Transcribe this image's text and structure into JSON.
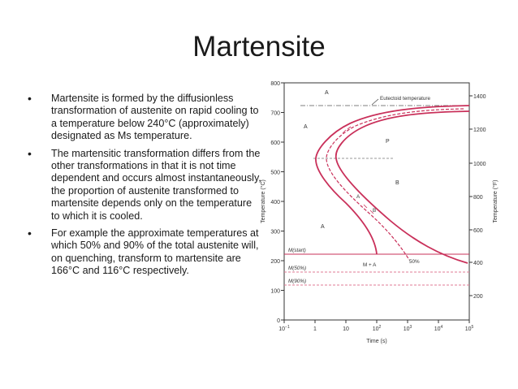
{
  "slide": {
    "title": "Martensite",
    "bullets": [
      "Martensite is formed by the diffusionless transformation of austenite on rapid cooling to a temperature below 240°C (approximately) designated as Ms temperature.",
      "The martensitic transformation differs from the other transformations in that it is not time dependent and occurs almost instantaneously, the proportion of austenite transformed to martensite depends only on the temperature to which it is cooled.",
      "For example the approximate temperatures at which 50% and 90% of the total austenite will, on quenching, transform to martensite are 166°C and 116°C respectively."
    ]
  },
  "diagram": {
    "xlabel": "Time (s)",
    "ylabel_left": "Temperature (°C)",
    "ylabel_right": "Temperature (°F)",
    "x_ticks": [
      {
        "base": "10",
        "exp": "−1"
      },
      {
        "base": "1",
        "exp": ""
      },
      {
        "base": "10",
        "exp": ""
      },
      {
        "base": "10",
        "exp": "2"
      },
      {
        "base": "10",
        "exp": "3"
      },
      {
        "base": "10",
        "exp": "4"
      },
      {
        "base": "10",
        "exp": "5"
      }
    ],
    "y_ticks_c": [
      "0",
      "100",
      "200",
      "300",
      "400",
      "500",
      "600",
      "700",
      "800"
    ],
    "y_ticks_f": [
      "200",
      "400",
      "600",
      "800",
      "1000",
      "1200",
      "1400"
    ],
    "labels": {
      "eutectoid": "Eutectoid temperature",
      "a_top": "A",
      "a_left": "A",
      "a_lower": "A",
      "p": "P",
      "b": "B",
      "a_nose": "A",
      "b_nose": "B",
      "m_start": "M(start)",
      "m_plus_a": "M + A",
      "pct50": "50%",
      "m50": "M(50%)",
      "m90": "M(90%)"
    },
    "colors": {
      "curve": "#c9305a",
      "dashed": "#e07b94",
      "axis": "#333333"
    }
  }
}
